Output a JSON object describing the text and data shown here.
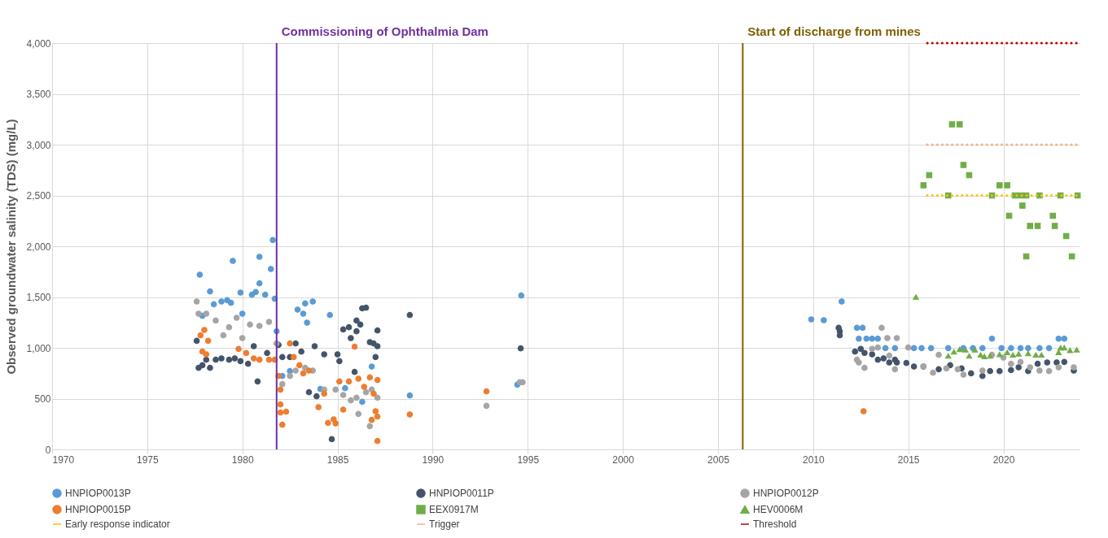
{
  "chart_data": {
    "type": "scatter",
    "ylabel": "Observed groundwater salinity (TDS) (mg/L)",
    "xlim": [
      1970,
      2024
    ],
    "xticks": [
      1970,
      1975,
      1980,
      1985,
      1990,
      1995,
      2000,
      2005,
      2010,
      2015,
      2020
    ],
    "ylim": [
      0,
      4000
    ],
    "yticks": [
      0,
      500,
      {
        "value": 1000,
        "label": "1,000"
      },
      {
        "value": 1500,
        "label": "1,500"
      },
      {
        "value": 2000,
        "label": "2,000"
      },
      {
        "value": 2500,
        "label": "2,500"
      },
      {
        "value": 3000,
        "label": "3,000"
      },
      {
        "value": 3500,
        "label": "3,500"
      },
      {
        "value": 4000,
        "label": "4,000"
      }
    ],
    "grid": true,
    "legend": "bottom",
    "ref_lines": [
      {
        "axis": "x",
        "value": 1981.8,
        "label": "Commissioning of Ophthalmia Dam",
        "color": "#7030a0"
      },
      {
        "axis": "x",
        "value": 2006.3,
        "label": "Start of discharge from mines",
        "color": "#7f6000"
      }
    ],
    "series": [
      {
        "name": "HNPIOP0013P",
        "marker": "circle",
        "color": "#5b9bd5",
        "x": [
          1977.76,
          1977.9,
          1978.3,
          1978.5,
          1978.9,
          1979.2,
          1979.4,
          1979.5,
          1979.9,
          1980.0,
          1980.5,
          1980.7,
          1980.9,
          1980.9,
          1981.2,
          1981.5,
          1981.6,
          1981.7,
          1981.8,
          1982.1,
          1982.5,
          1982.9,
          1983.2,
          1983.3,
          1983.4,
          1983.7,
          1984.1,
          1984.6,
          1985.4,
          1986.3,
          1986.8,
          1988.8,
          1994.45,
          1994.66,
          2009.9,
          2010.56,
          2011.5,
          2012.3,
          2012.4,
          2012.6,
          2012.8,
          2013.1,
          2013.4,
          2013.8,
          2014.3,
          2015.3,
          2015.7,
          2016.2,
          2017.1,
          2017.9,
          2018.4,
          2018.9,
          2019.4,
          2019.9,
          2020.4,
          2020.9,
          2021.3,
          2021.9,
          2022.4,
          2022.9,
          2023.2
        ],
        "values": [
          1720,
          1315,
          1555,
          1429,
          1456,
          1469,
          1443,
          1856,
          1544,
          1336,
          1523,
          1549,
          1896,
          1635,
          1523,
          1776,
          2061,
          1483,
          1163,
          723,
          771,
          1376,
          1336,
          1437,
          1248,
          1456,
          595,
          1323,
          603,
          469,
          816,
          531,
          637,
          1515,
          1280,
          1272,
          1456,
          1197,
          1090,
          1197,
          1090,
          1090,
          1090,
          997,
          997,
          997,
          997,
          997,
          997,
          997,
          997,
          997,
          1090,
          997,
          997,
          997,
          997,
          997,
          997,
          1090,
          1090
        ]
      },
      {
        "name": "HNPIOP0011P",
        "marker": "circle",
        "color": "#44546a",
        "x": [
          1977.6,
          1977.7,
          1977.9,
          1978.1,
          1978.3,
          1978.6,
          1978.9,
          1979.3,
          1979.6,
          1979.9,
          1980.3,
          1980.6,
          1980.8,
          1981.3,
          1981.9,
          1982.1,
          1982.5,
          1982.8,
          1983.1,
          1983.5,
          1983.8,
          1983.9,
          1984.3,
          1984.7,
          1985.0,
          1985.1,
          1985.3,
          1985.6,
          1985.7,
          1985.9,
          1986.0,
          1986.0,
          1986.2,
          1986.3,
          1986.5,
          1986.7,
          1986.9,
          1987.0,
          1987.1,
          1987.1,
          1988.8,
          1994.63,
          2011.34,
          2011.4,
          2011.4,
          2012.2,
          2012.5,
          2012.7,
          2013.1,
          2013.4,
          2013.7,
          2014.0,
          2014.3,
          2014.4,
          2014.9,
          2015.3,
          2015.8,
          2016.6,
          2017.2,
          2017.8,
          2018.3,
          2018.9,
          2019.3,
          2019.8,
          2020.4,
          2020.8,
          2021.3,
          2021.8,
          2022.3,
          2022.8,
          2023.2,
          2023.7
        ],
        "values": [
          1069,
          803,
          829,
          883,
          803,
          883,
          896,
          883,
          896,
          869,
          843,
          1016,
          669,
          949,
          1029,
          909,
          909,
          1043,
          963,
          563,
          1016,
          523,
          936,
          101,
          936,
          869,
          1181,
          1203,
          1096,
          763,
          1269,
          1163,
          1229,
          1389,
          1395,
          1056,
          1043,
          909,
          1171,
          1016,
          1323,
          995,
          1197,
          1163,
          1123,
          963,
          990,
          950,
          936,
          883,
          896,
          856,
          883,
          856,
          851,
          816,
          816,
          789,
          829,
          797,
          749,
          723,
          771,
          771,
          781,
          808,
          771,
          843,
          856,
          856,
          861,
          776
        ]
      },
      {
        "name": "HNPIOP0012P",
        "marker": "circle",
        "color": "#a5a5a5",
        "x": [
          1977.6,
          1977.7,
          1978.1,
          1978.6,
          1979.0,
          1979.3,
          1979.7,
          1980.0,
          1980.4,
          1980.9,
          1981.4,
          1981.8,
          1982.1,
          1982.5,
          1982.8,
          1983.3,
          1983.7,
          1984.3,
          1984.9,
          1985.3,
          1985.7,
          1986.0,
          1986.1,
          1986.5,
          1986.7,
          1986.8,
          1987.1,
          1992.83,
          1994.58,
          1994.73,
          2012.3,
          2012.4,
          2012.7,
          2013.1,
          2013.4,
          2013.6,
          2013.9,
          2014.0,
          2014.3,
          2014.4,
          2015.0,
          2015.8,
          2016.3,
          2016.6,
          2017.0,
          2017.6,
          2017.9,
          2018.9,
          2019.4,
          2020.0,
          2020.4,
          2020.9,
          2021.4,
          2021.9,
          2022.4,
          2022.9,
          2023.7
        ],
        "values": [
          1456,
          1336,
          1336,
          1269,
          1123,
          1203,
          1296,
          1096,
          1229,
          1216,
          1256,
          1043,
          643,
          723,
          776,
          803,
          776,
          589,
          589,
          536,
          483,
          509,
          349,
          563,
          229,
          589,
          509,
          429,
          661,
          661,
          883,
          856,
          803,
          990,
          1003,
          1197,
          1096,
          923,
          789,
          1096,
          1003,
          816,
          755,
          931,
          797,
          789,
          736,
          776,
          931,
          904,
          843,
          861,
          808,
          776,
          771,
          808,
          808
        ]
      },
      {
        "name": "HNPIOP0015P",
        "marker": "circle",
        "color": "#ed7d31",
        "x": [
          1977.8,
          1977.9,
          1978.0,
          1978.1,
          1978.2,
          1979.8,
          1980.2,
          1980.6,
          1980.9,
          1981.4,
          1981.7,
          1981.9,
          1982.0,
          1982.0,
          1982.0,
          1982.1,
          1982.3,
          1982.5,
          1982.7,
          1983.0,
          1983.2,
          1983.5,
          1984.0,
          1984.3,
          1984.5,
          1984.8,
          1984.9,
          1985.1,
          1985.3,
          1985.6,
          1985.9,
          1986.1,
          1986.4,
          1986.7,
          1986.8,
          1986.9,
          1987.0,
          1987.1,
          1987.1,
          1987.1,
          1988.8,
          1992.83,
          2012.65
        ],
        "values": [
          1123,
          963,
          1176,
          936,
          1069,
          989,
          949,
          896,
          883,
          883,
          883,
          723,
          589,
          443,
          363,
          243,
          371,
          1043,
          909,
          829,
          749,
          776,
          416,
          549,
          261,
          296,
          256,
          669,
          392,
          669,
          1011,
          696,
          616,
          709,
          291,
          549,
          376,
          683,
          323,
          83,
          344,
          571,
          376
        ]
      },
      {
        "name": "EEX0917M",
        "marker": "square",
        "color": "#70ad47",
        "x": [
          2015.8,
          2016.1,
          2017.1,
          2017.3,
          2017.7,
          2017.9,
          2018.2,
          2019.4,
          2019.8,
          2020.2,
          2020.3,
          2020.6,
          2020.9,
          2021.0,
          2021.2,
          2021.2,
          2021.4,
          2021.8,
          2021.9,
          2022.6,
          2022.7,
          2023.0,
          2023.3,
          2023.6,
          2023.9
        ],
        "values": [
          2600,
          2700,
          2500,
          3200,
          3200,
          2800,
          2700,
          2500,
          2600,
          2600,
          2300,
          2500,
          2500,
          2400,
          2500,
          1900,
          2200,
          2200,
          2500,
          2300,
          2200,
          2500,
          2100,
          1900,
          2500
        ]
      },
      {
        "name": "HEV0006M",
        "marker": "triangle",
        "color": "#70ad47",
        "x": [
          2015.4,
          2017.1,
          2017.4,
          2017.7,
          2018.0,
          2018.2,
          2018.5,
          2018.8,
          2019.0,
          2019.3,
          2019.8,
          2020.2,
          2020.5,
          2020.8,
          2021.3,
          2021.7,
          2022.0,
          2022.9,
          2023.0,
          2023.2,
          2023.5,
          2023.85
        ],
        "values": [
          1500,
          920,
          960,
          985,
          980,
          920,
          980,
          930,
          915,
          920,
          935,
          955,
          930,
          940,
          945,
          930,
          930,
          955,
          1000,
          1000,
          975,
          980
        ]
      },
      {
        "name": "Early response indicator",
        "type": "line",
        "line_style": "dotted",
        "color": "#ffc000",
        "x": [
          2016,
          2024
        ],
        "values": [
          2500,
          2500
        ]
      },
      {
        "name": "Trigger",
        "type": "line",
        "line_style": "dotted",
        "color": "#f4b183",
        "x": [
          2016,
          2024
        ],
        "values": [
          3000,
          3000
        ]
      },
      {
        "name": "Threshold",
        "type": "line",
        "line_style": "dotted",
        "color": "#c00000",
        "x": [
          2016,
          2024
        ],
        "values": [
          4000,
          4000
        ]
      }
    ]
  }
}
